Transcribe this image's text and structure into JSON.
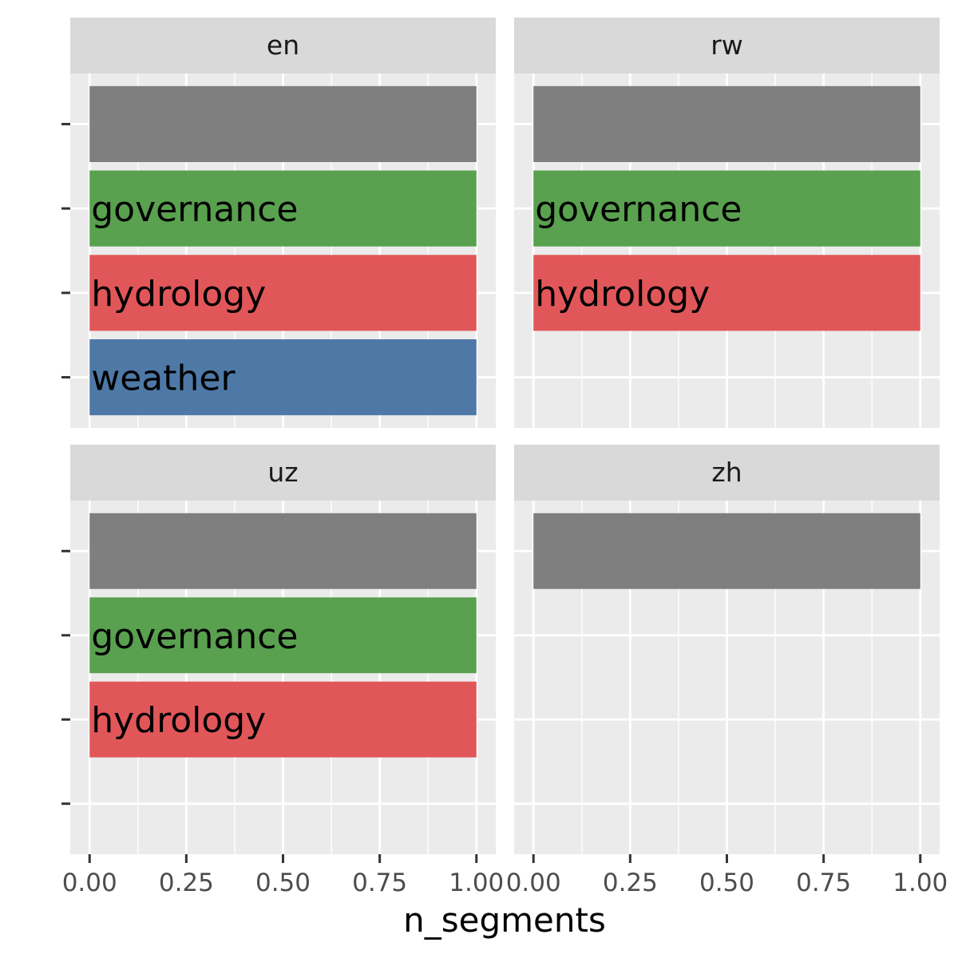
{
  "chart_data": {
    "type": "bar",
    "orientation": "horizontal",
    "facet_by": "language",
    "xlabel": "n_segments",
    "ylabel": "",
    "xlim": [
      0,
      1
    ],
    "x_ticks": [
      "0.00",
      "0.25",
      "0.50",
      "0.75",
      "1.00"
    ],
    "grid": true,
    "legend": "none",
    "colors": {
      "blank": "#7f7f7f",
      "governance": "#59a14f",
      "hydrology": "#e15759",
      "weather": "#4e79a7"
    },
    "categories": [
      "",
      "governance",
      "hydrology",
      "weather"
    ],
    "facets": [
      {
        "name": "en",
        "bars": [
          {
            "category": "",
            "value": 1
          },
          {
            "category": "governance",
            "value": 1
          },
          {
            "category": "hydrology",
            "value": 1
          },
          {
            "category": "weather",
            "value": 1
          }
        ]
      },
      {
        "name": "rw",
        "bars": [
          {
            "category": "",
            "value": 1
          },
          {
            "category": "governance",
            "value": 1
          },
          {
            "category": "hydrology",
            "value": 1
          }
        ]
      },
      {
        "name": "uz",
        "bars": [
          {
            "category": "",
            "value": 1
          },
          {
            "category": "governance",
            "value": 1
          },
          {
            "category": "hydrology",
            "value": 1
          }
        ]
      },
      {
        "name": "zh",
        "bars": [
          {
            "category": "",
            "value": 1
          }
        ]
      }
    ]
  }
}
